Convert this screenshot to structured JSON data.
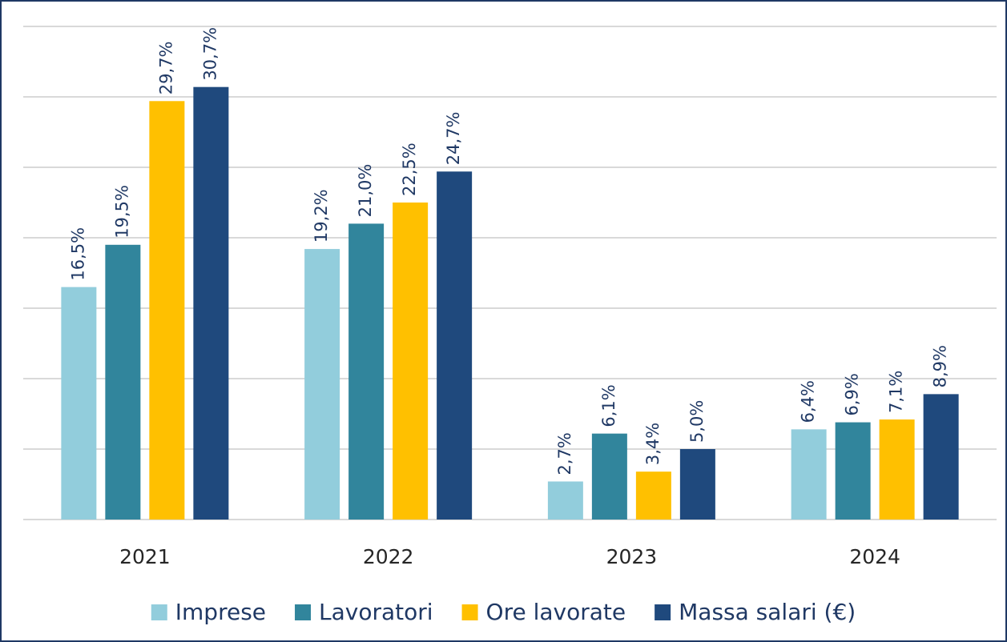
{
  "chart_data": {
    "type": "bar",
    "categories": [
      "2021",
      "2022",
      "2023",
      "2024"
    ],
    "series": [
      {
        "name": "Imprese",
        "color": "#92cddc",
        "values": [
          16.5,
          19.2,
          2.7,
          6.4
        ],
        "value_labels": [
          "16,5%",
          "19,2%",
          "2,7%",
          "6,4%"
        ]
      },
      {
        "name": "Lavoratori",
        "color": "#31859c",
        "values": [
          19.5,
          21.0,
          6.1,
          6.9
        ],
        "value_labels": [
          "19,5%",
          "21,0%",
          "6,1%",
          "6,9%"
        ]
      },
      {
        "name": "Ore lavorate",
        "color": "#ffc000",
        "values": [
          29.7,
          22.5,
          3.4,
          7.1
        ],
        "value_labels": [
          "29,7%",
          "22,5%",
          "3,4%",
          "7,1%"
        ]
      },
      {
        "name": "Massa salari (€)",
        "color": "#1f497d",
        "values": [
          30.7,
          24.7,
          5.0,
          8.9
        ],
        "value_labels": [
          "30,7%",
          "24,7%",
          "5,0%",
          "8,9%"
        ]
      }
    ],
    "ylim": [
      0,
      35
    ],
    "yticks": [
      0,
      5,
      10,
      15,
      20,
      25,
      30,
      35
    ],
    "grid": true,
    "legend": "bottom"
  }
}
